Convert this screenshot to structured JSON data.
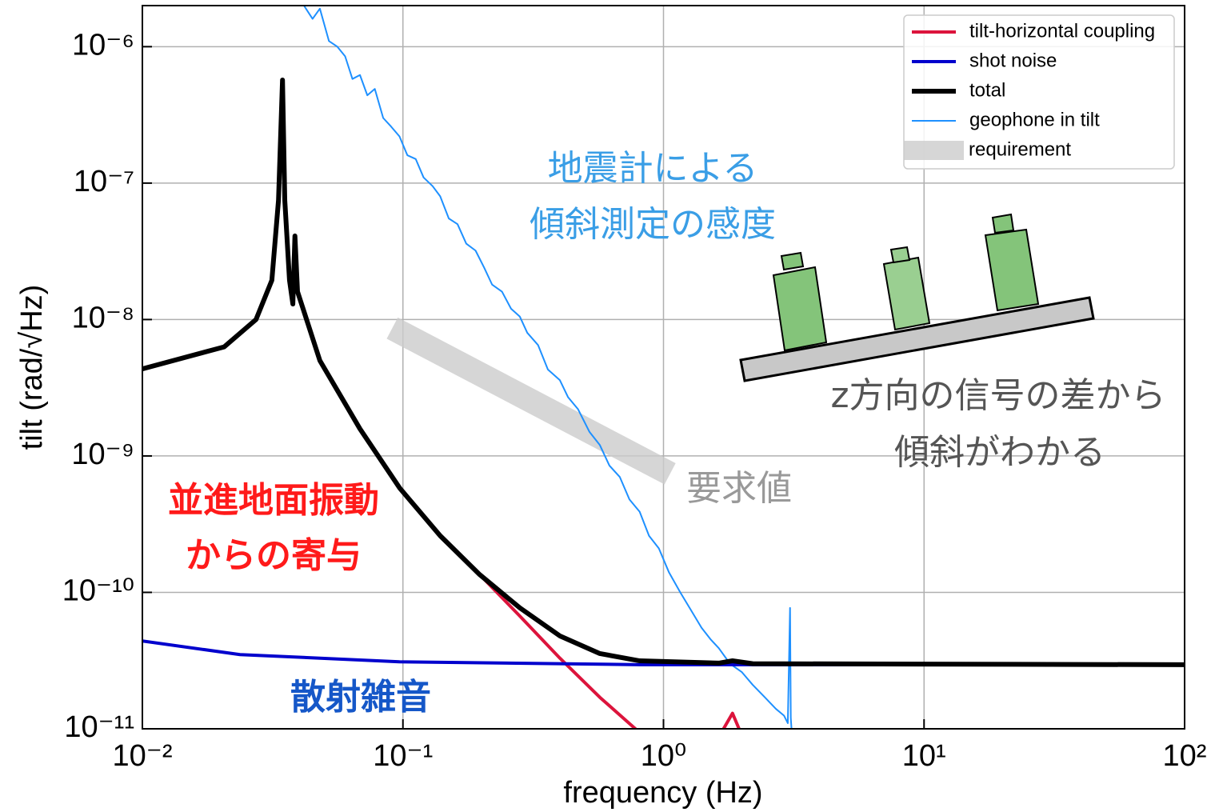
{
  "chart_data": {
    "type": "line",
    "log_x": true,
    "log_y": true,
    "grid": true,
    "legend_loc": "upper right",
    "xlabel": "frequency (Hz)",
    "ylabel": "tilt (rad/√Hz)",
    "xlim": [
      0.01,
      100
    ],
    "ylim": [
      1e-11,
      2e-06
    ],
    "xticks": [
      {
        "value": 0.01,
        "label": "10⁻²"
      },
      {
        "value": 0.1,
        "label": "10⁻¹"
      },
      {
        "value": 1,
        "label": "10⁰"
      },
      {
        "value": 10,
        "label": "10¹"
      },
      {
        "value": 100,
        "label": "10²"
      }
    ],
    "yticks": [
      {
        "value": 1e-11,
        "label": "10⁻¹¹"
      },
      {
        "value": 1e-10,
        "label": "10⁻¹⁰"
      },
      {
        "value": 1e-09,
        "label": "10⁻⁹"
      },
      {
        "value": 1e-08,
        "label": "10⁻⁸"
      },
      {
        "value": 1e-07,
        "label": "10⁻⁷"
      },
      {
        "value": 1e-06,
        "label": "10⁻⁶"
      }
    ],
    "series": [
      {
        "name": "tilt-horizontal coupling",
        "color": "#dc143c",
        "linewidth": 4,
        "x": [
          0.01,
          0.0206,
          0.0273,
          0.0314,
          0.0333,
          0.0345,
          0.0352,
          0.0367,
          0.0378,
          0.0385,
          0.0394,
          0.048,
          0.0684,
          0.0973,
          0.139,
          0.197,
          0.281,
          0.4,
          0.57,
          0.78,
          null,
          1.7,
          1.84,
          1.95
        ],
        "values": [
          4.35e-09,
          6.3e-09,
          1e-08,
          1.94e-08,
          7.5e-08,
          5.7e-07,
          7.5e-08,
          1.94e-08,
          1.3e-08,
          4.1e-08,
          1.6e-08,
          5e-09,
          1.58e-09,
          5.8e-10,
          2.6e-10,
          1.35e-10,
          6.7e-11,
          3.3e-11,
          1.7e-11,
          1e-11,
          null,
          1e-11,
          1.3e-11,
          1e-11
        ]
      },
      {
        "name": "shot noise",
        "color": "#0000cd",
        "linewidth": 4,
        "x": [
          0.01,
          0.0237,
          0.097,
          0.81,
          100
        ],
        "values": [
          4.4e-11,
          3.5e-11,
          3.1e-11,
          2.95e-11,
          2.95e-11
        ]
      },
      {
        "name": "total",
        "color": "#000000",
        "linewidth": 6,
        "x": [
          0.01,
          0.0206,
          0.0273,
          0.0314,
          0.0333,
          0.0345,
          0.0352,
          0.0367,
          0.0378,
          0.0385,
          0.0394,
          0.048,
          0.0684,
          0.0973,
          0.139,
          0.197,
          0.281,
          0.4,
          0.57,
          0.81,
          1.63,
          1.84,
          2.2,
          100
        ],
        "values": [
          4.35e-09,
          6.3e-09,
          1e-08,
          1.94e-08,
          7.5e-08,
          5.7e-07,
          7.5e-08,
          1.94e-08,
          1.3e-08,
          4.1e-08,
          1.6e-08,
          5e-09,
          1.58e-09,
          5.8e-10,
          2.6e-10,
          1.35e-10,
          7.7e-11,
          4.8e-11,
          3.56e-11,
          3.15e-11,
          3.03e-11,
          3.15e-11,
          3e-11,
          2.95e-11
        ]
      },
      {
        "name": "geophone in tilt",
        "color": "#1e90ff",
        "linewidth": 2,
        "x": [
          0.0417,
          0.045,
          0.048,
          0.052,
          0.056,
          0.06,
          0.064,
          0.0684,
          0.073,
          0.078,
          0.084,
          0.09,
          0.097,
          0.104,
          0.112,
          0.12,
          0.13,
          0.139,
          0.15,
          0.162,
          0.175,
          0.19,
          0.205,
          0.22,
          0.24,
          0.26,
          0.281,
          0.3,
          0.33,
          0.36,
          0.4,
          0.43,
          0.47,
          0.52,
          0.57,
          0.62,
          0.68,
          0.74,
          0.81,
          0.88,
          0.96,
          1.05,
          1.16,
          1.27,
          1.4,
          1.52,
          1.63,
          1.8,
          2.0,
          2.2,
          2.45,
          2.7,
          2.9,
          3.0,
          3.06,
          3.07,
          3.08,
          3.1
        ],
        "values": [
          2e-06,
          1.6e-06,
          1.9e-06,
          1.1e-06,
          1e-06,
          8.5e-07,
          5.8e-07,
          6.2e-07,
          4.4e-07,
          4.9e-07,
          3e-07,
          2.6e-07,
          2.2e-07,
          1.6e-07,
          1.5e-07,
          1.1e-07,
          9.5e-08,
          8e-08,
          5.5e-08,
          5e-08,
          3.6e-08,
          3.2e-08,
          2.4e-08,
          1.8e-08,
          1.6e-08,
          1.2e-08,
          1.05e-08,
          8e-09,
          6.5e-09,
          4.3e-09,
          3.6e-09,
          2.7e-09,
          2.2e-09,
          1.5e-09,
          1.2e-09,
          8.5e-10,
          7e-10,
          4.8e-10,
          3.9e-10,
          2.6e-10,
          2.1e-10,
          1.4e-10,
          1e-10,
          7.5e-11,
          5.5e-11,
          4.5e-11,
          3.9e-11,
          3e-11,
          2.6e-11,
          2.1e-11,
          1.7e-11,
          1.4e-11,
          1.25e-11,
          1.1e-11,
          7.7e-11,
          3e-11,
          1.2e-11,
          1e-11
        ]
      },
      {
        "name": "requirement",
        "color": "#cccccc",
        "linewidth": 30,
        "opacity": 0.8,
        "x": [
          0.091,
          1.06
        ],
        "values": [
          8.65e-09,
          7.4e-10
        ]
      }
    ],
    "annotations": [
      {
        "text": "地震計による"
      },
      {
        "text": "傾斜測定の感度"
      },
      {
        "text": "並進地面振動"
      },
      {
        "text": "からの寄与"
      },
      {
        "text": "散射雑音"
      },
      {
        "text": "要求値"
      },
      {
        "text": "z方向の信号の差から"
      },
      {
        "text": "傾斜がわかる"
      }
    ]
  }
}
